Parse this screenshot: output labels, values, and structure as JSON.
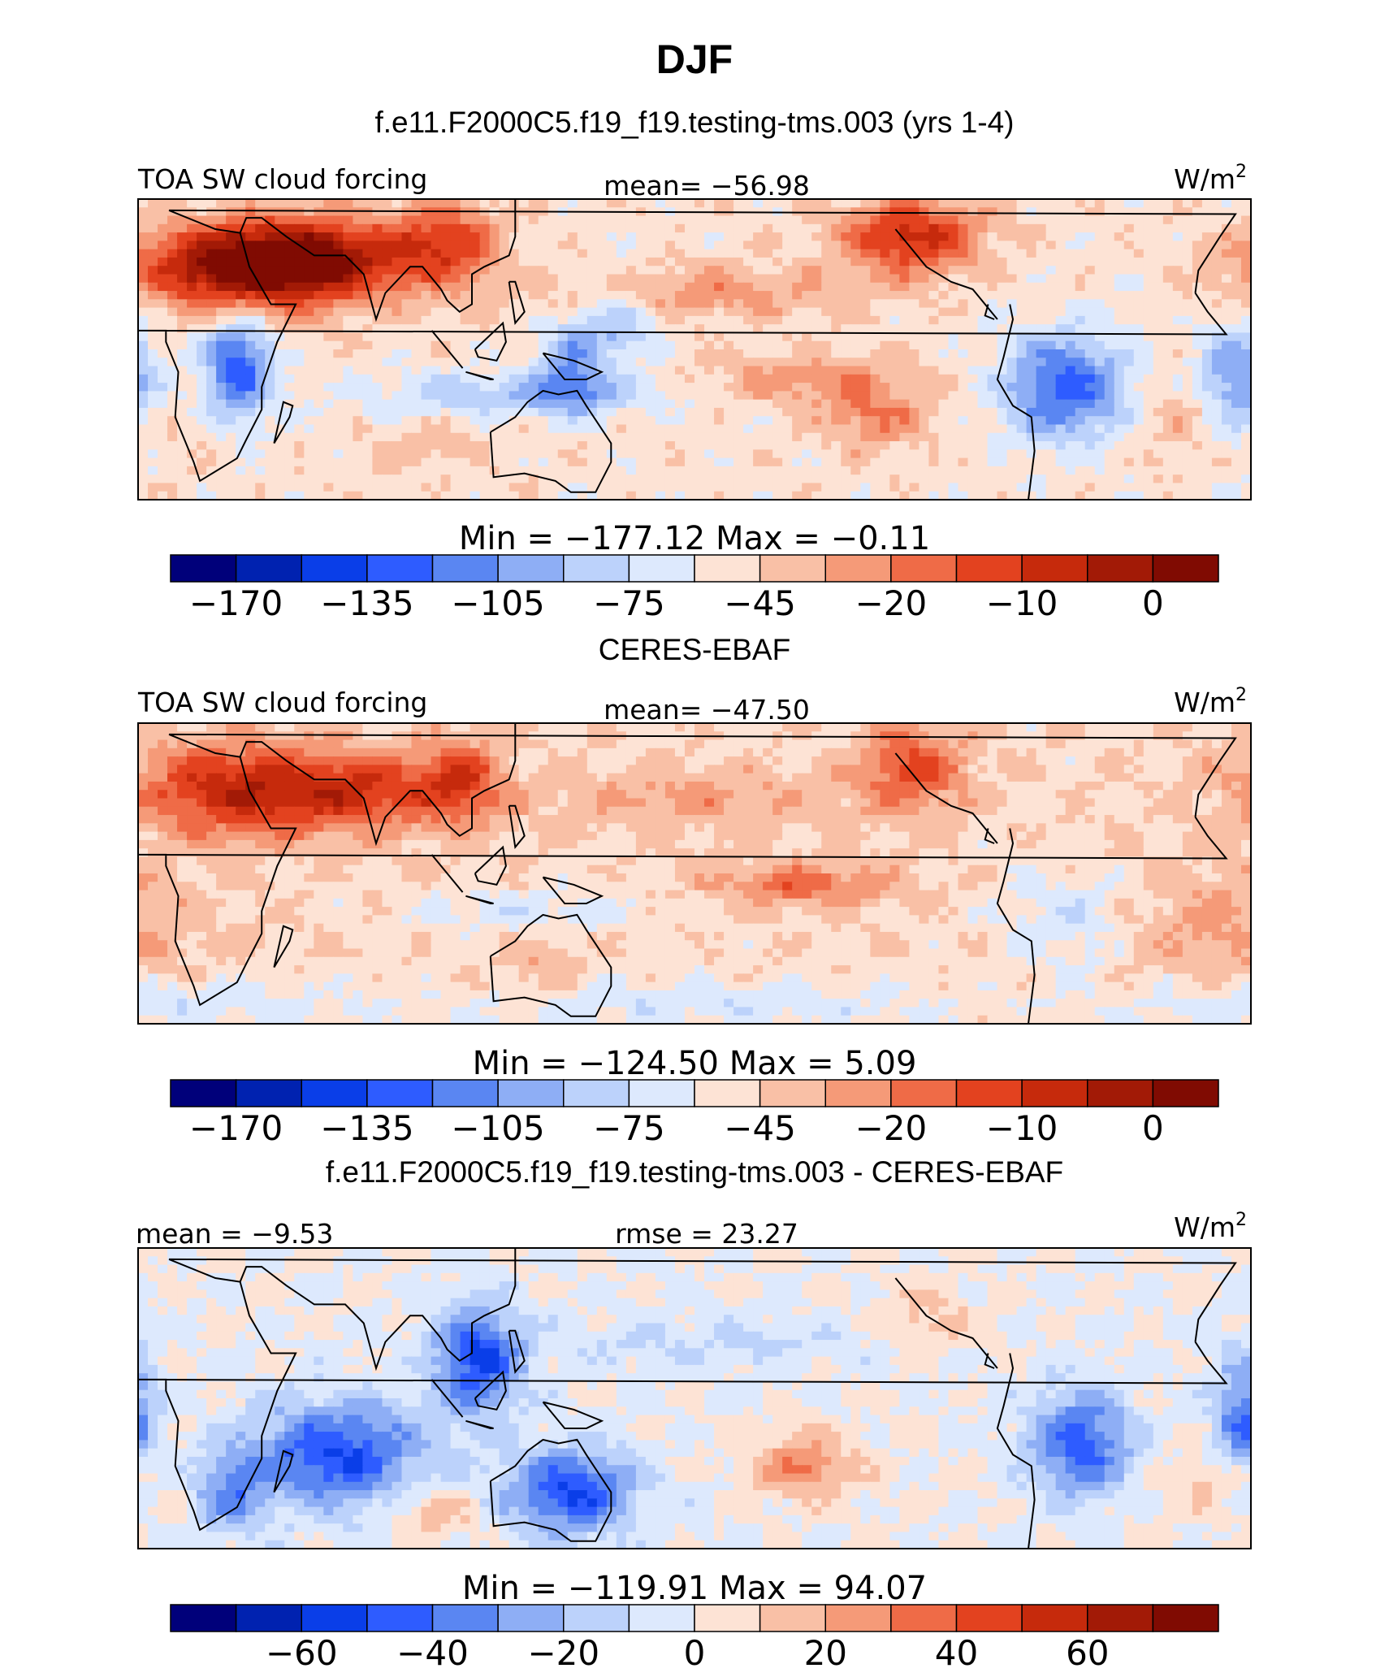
{
  "title": "DJF",
  "units": "W/m",
  "units_sup": "2",
  "colors": {
    "levels": [
      "#00007a",
      "#0022b0",
      "#0a3ee8",
      "#2e5cff",
      "#5a86f2",
      "#8eaef5",
      "#bcd2fb",
      "#dde9fd",
      "#fde3d5",
      "#f9c0a6",
      "#f59a78",
      "#ef6b47",
      "#e3421f",
      "#c62a0c",
      "#a21a06",
      "#800b02"
    ],
    "land_line": "#000000",
    "frame": "#000000"
  },
  "chart_data": [
    {
      "type": "heatmap",
      "title": "f.e11.F2000C5.f19_f19.testing-tms.003 (yrs 1-4)",
      "left_label": "TOA SW cloud forcing",
      "center_label": "mean=  −56.98",
      "minmax_label": "Min  =  −177.12  Max  =    −0.11",
      "colorbar_ticks": [
        "−170",
        "−135",
        "−105",
        "−75",
        "−45",
        "−20",
        "−10",
        "0"
      ],
      "mean": -56.98,
      "min": -177.12,
      "max": -0.11,
      "seed": 11
    },
    {
      "type": "heatmap",
      "title": "CERES-EBAF",
      "left_label": "TOA SW cloud forcing",
      "center_label": "mean=  −47.50",
      "minmax_label": "Min  =  −124.50  Max  =     5.09",
      "colorbar_ticks": [
        "−170",
        "−135",
        "−105",
        "−75",
        "−45",
        "−20",
        "−10",
        "0"
      ],
      "mean": -47.5,
      "min": -124.5,
      "max": 5.09,
      "seed": 23
    },
    {
      "type": "heatmap",
      "title": "f.e11.F2000C5.f19_f19.testing-tms.003 - CERES-EBAF",
      "left_label": "mean =   −9.53",
      "center_label": "rmse =   23.27",
      "minmax_label": "Min  =  −119.91  Max  =   94.07",
      "colorbar_ticks": [
        "−60",
        "−40",
        "−20",
        "0",
        "20",
        "40",
        "60"
      ],
      "mean": -9.53,
      "rmse": 23.27,
      "min": -119.91,
      "max": 94.07,
      "seed": 37
    }
  ]
}
